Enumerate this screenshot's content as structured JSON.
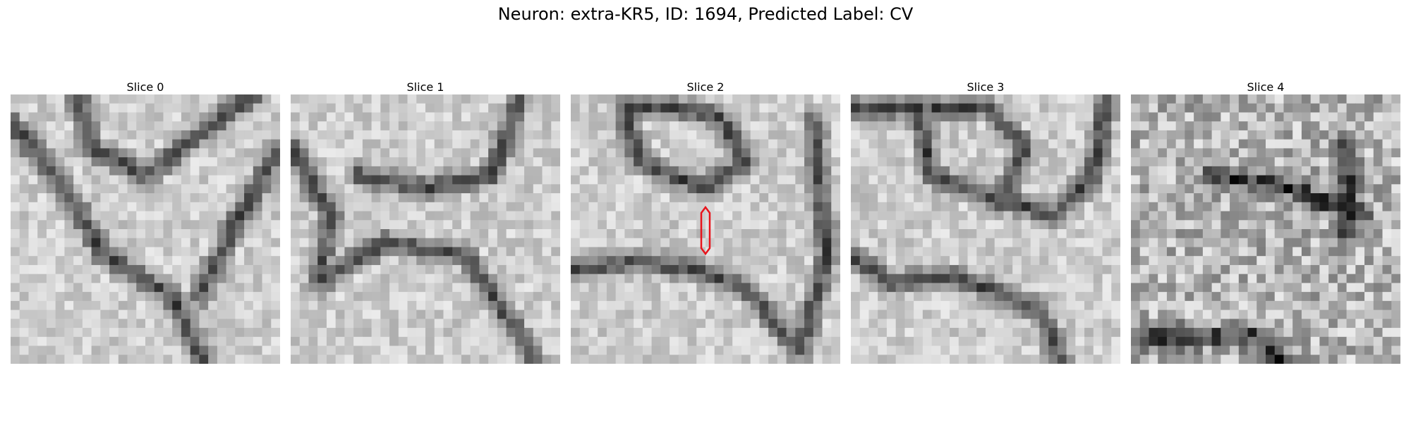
{
  "figure": {
    "title": "Neuron: extra-KR5, ID: 1694, Predicted Label: CV"
  },
  "slices": [
    {
      "label": "Slice 0",
      "seed": 11
    },
    {
      "label": "Slice 1",
      "seed": 23
    },
    {
      "label": "Slice 2",
      "seed": 37
    },
    {
      "label": "Slice 3",
      "seed": 51
    },
    {
      "label": "Slice 4",
      "seed": 67
    }
  ],
  "grid_cells": 30,
  "marker": {
    "slice_index": 2,
    "color": "#e8141c",
    "shape": "elongated-hexagon"
  }
}
